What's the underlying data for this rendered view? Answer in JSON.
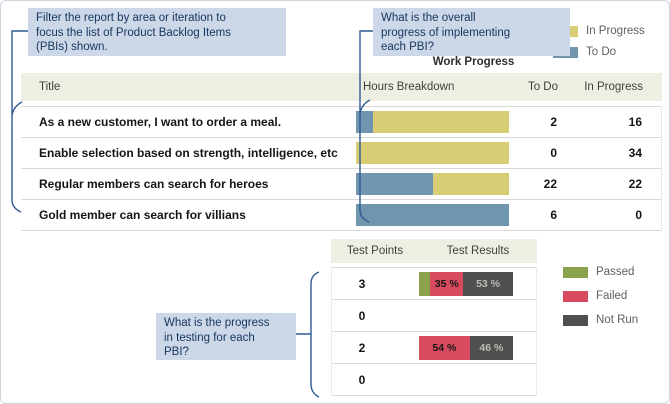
{
  "callouts": {
    "filter": "Filter the report by area or iteration to\nfocus the list of Product Backlog Items\n(PBIs) shown.",
    "overall": "What is the overall\nprogress of implementing\neach PBI?",
    "testing": "What is the progress\nin testing for each\nPBI?"
  },
  "colors": {
    "in_progress": "#d8cc75",
    "todo": "#7095ae",
    "passed": "#8ba24d",
    "failed": "#d84b5f",
    "not_run": "#4f4f4f",
    "callout_bg": "#ccd8e7",
    "callout_text": "#15355e",
    "connector": "#2e5a94",
    "header_bg": "#efeee2",
    "seg_label_dark": "#161616",
    "seg_label_light": "#bdbdb4"
  },
  "work_progress": {
    "title": "Work Progress",
    "legend": [
      {
        "label": "In Progress",
        "color": "#d8cc75"
      },
      {
        "label": "To Do",
        "color": "#7095ae"
      }
    ],
    "columns": {
      "title": "Title",
      "hours": "Hours Breakdown",
      "todo": "To Do",
      "inprogress": "In Progress"
    },
    "rows": [
      {
        "title": "As a new customer, I want to order a meal.",
        "todo": 2,
        "inprogress": 16
      },
      {
        "title": "Enable selection based on strength, intelligence, etc",
        "todo": 0,
        "inprogress": 34
      },
      {
        "title": "Regular members can search for heroes",
        "todo": 22,
        "inprogress": 22
      },
      {
        "title": "Gold member can search for villians",
        "todo": 6,
        "inprogress": 0
      }
    ]
  },
  "testing": {
    "columns": {
      "points": "Test Points",
      "results": "Test Results"
    },
    "legend": [
      {
        "label": "Passed",
        "color": "#8ba24d"
      },
      {
        "label": "Failed",
        "color": "#d84b5f"
      },
      {
        "label": "Not Run",
        "color": "#4f4f4f"
      }
    ],
    "rows": [
      {
        "points": 3,
        "segments": [
          {
            "kind": "passed",
            "pct": 12,
            "label": ""
          },
          {
            "kind": "failed",
            "pct": 35,
            "label": "35 %"
          },
          {
            "kind": "not_run",
            "pct": 53,
            "label": "53 %"
          }
        ]
      },
      {
        "points": 0,
        "segments": []
      },
      {
        "points": 2,
        "segments": [
          {
            "kind": "failed",
            "pct": 54,
            "label": "54 %"
          },
          {
            "kind": "not_run",
            "pct": 46,
            "label": "46 %"
          }
        ]
      },
      {
        "points": 0,
        "segments": []
      }
    ]
  },
  "chart_data": [
    {
      "type": "bar",
      "orientation": "horizontal",
      "stacked": true,
      "title": "Work Progress",
      "categories": [
        "As a new customer, I want to order a meal.",
        "Enable selection based on strength, intelligence, etc",
        "Regular members can search for heroes",
        "Gold member can search for villians"
      ],
      "series": [
        {
          "name": "To Do",
          "values": [
            2,
            0,
            22,
            6
          ]
        },
        {
          "name": "In Progress",
          "values": [
            16,
            34,
            22,
            0
          ]
        }
      ],
      "xlabel": "Hours Breakdown",
      "legend_position": "top-right",
      "note": "each row bar normalized to 100% width"
    },
    {
      "type": "bar",
      "orientation": "horizontal",
      "stacked": true,
      "title": "Test Results",
      "categories": [
        "3",
        "0",
        "2",
        "0"
      ],
      "series": [
        {
          "name": "Passed",
          "values": [
            12,
            0,
            0,
            0
          ]
        },
        {
          "name": "Failed",
          "values": [
            35,
            0,
            54,
            0
          ]
        },
        {
          "name": "Not Run",
          "values": [
            53,
            0,
            46,
            0
          ]
        }
      ],
      "unit": "percent",
      "legend_position": "right"
    }
  ]
}
